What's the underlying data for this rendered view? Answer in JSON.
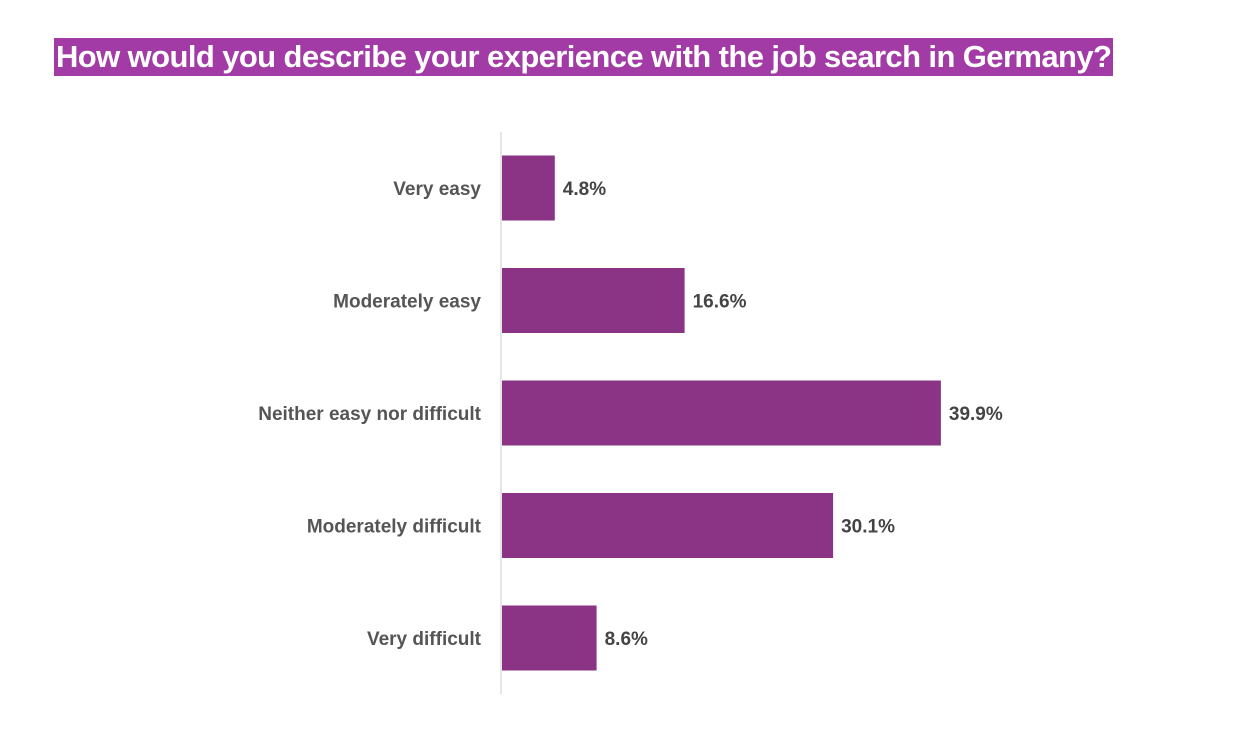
{
  "chart_data": {
    "type": "bar",
    "orientation": "horizontal",
    "title": "How would you describe your experience with the job search in Germany?",
    "categories": [
      "Very easy",
      "Moderately easy",
      "Neither easy nor difficult",
      "Moderately difficult",
      "Very difficult"
    ],
    "values": [
      4.8,
      16.6,
      39.9,
      30.1,
      8.6
    ],
    "value_labels": [
      "4.8%",
      "16.6%",
      "39.9%",
      "30.1%",
      "8.6%"
    ],
    "unit": "%",
    "xlim": [
      0,
      40
    ],
    "grid": false,
    "legend": "none",
    "colors": {
      "bar": "#8b3486",
      "title_background": "#a23ba6",
      "axis_line": "#dddddd"
    }
  }
}
